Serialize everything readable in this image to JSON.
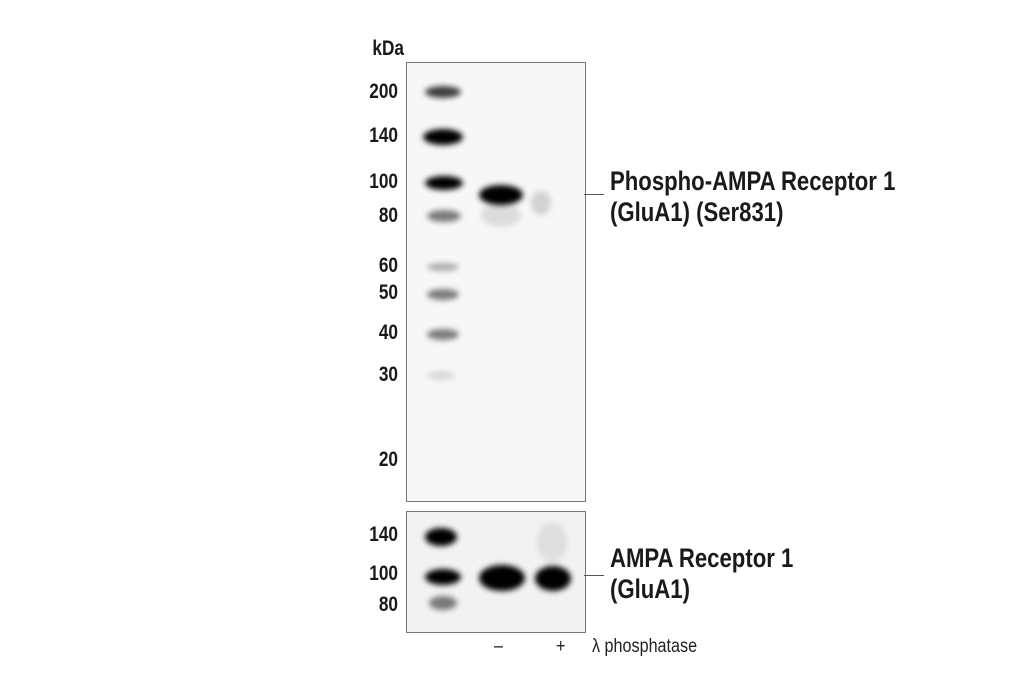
{
  "unit_label": "kDa",
  "upper_panel": {
    "markers": [
      "200",
      "140",
      "100",
      "80",
      "60",
      "50",
      "40",
      "30",
      "20"
    ],
    "target_label_line1": "Phospho-AMPA Receptor 1",
    "target_label_line2": "(GluA1) (Ser831)"
  },
  "lower_panel": {
    "markers": [
      "140",
      "100",
      "80"
    ],
    "target_label_line1": "AMPA Receptor 1",
    "target_label_line2": "(GluA1)"
  },
  "lanes": {
    "lane2": "–",
    "lane3": "+",
    "treatment": "λ phosphatase"
  }
}
